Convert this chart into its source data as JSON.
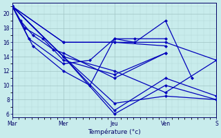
{
  "background_color": "#c8ecec",
  "grid_color_major": "#a0c4c4",
  "grid_color_minor": "#b4d8d8",
  "line_color": "#0000bb",
  "ylim": [
    5.5,
    21.5
  ],
  "yticks": [
    6,
    8,
    10,
    12,
    14,
    16,
    18,
    20
  ],
  "xlim": [
    0,
    100
  ],
  "x_day_positions": [
    0,
    25,
    50,
    75,
    100
  ],
  "x_day_labels": [
    "Mar",
    "Mer",
    "Jeu",
    "Ven",
    "S"
  ],
  "xlabel": "Température (°c)",
  "lines": [
    {
      "pts": [
        [
          0,
          21
        ],
        [
          25,
          14
        ],
        [
          50,
          6
        ],
        [
          75,
          10
        ],
        [
          100,
          8
        ]
      ]
    },
    {
      "pts": [
        [
          0,
          21
        ],
        [
          25,
          14
        ],
        [
          50,
          6.5
        ],
        [
          75,
          11
        ],
        [
          100,
          8.5
        ]
      ]
    },
    {
      "pts": [
        [
          0,
          21
        ],
        [
          25,
          14
        ],
        [
          50,
          7.5
        ],
        [
          75,
          8.5
        ],
        [
          100,
          8
        ]
      ]
    },
    {
      "pts": [
        [
          0,
          21
        ],
        [
          25,
          14
        ],
        [
          50,
          12
        ],
        [
          75,
          9
        ],
        [
          100,
          13.5
        ]
      ]
    },
    {
      "pts": [
        [
          0,
          21
        ],
        [
          25,
          16
        ],
        [
          50,
          16
        ],
        [
          75,
          16
        ],
        [
          100,
          13.5
        ]
      ]
    },
    {
      "pts": [
        [
          0,
          21
        ],
        [
          25,
          16
        ],
        [
          50,
          16
        ],
        [
          75,
          15.5
        ]
      ]
    },
    {
      "pts": [
        [
          0,
          21
        ],
        [
          10,
          15.5
        ],
        [
          25,
          12
        ],
        [
          38,
          10
        ],
        [
          50,
          16.5
        ],
        [
          60,
          16
        ],
        [
          75,
          19
        ],
        [
          88,
          11
        ]
      ]
    },
    {
      "pts": [
        [
          0,
          21
        ],
        [
          8,
          16.5
        ],
        [
          25,
          13
        ],
        [
          38,
          13.5
        ],
        [
          50,
          16.5
        ],
        [
          60,
          16.5
        ],
        [
          75,
          16.5
        ]
      ]
    },
    {
      "pts": [
        [
          0,
          21
        ],
        [
          6,
          18
        ],
        [
          15,
          16.5
        ],
        [
          25,
          13.5
        ],
        [
          50,
          11.5
        ],
        [
          75,
          14.5
        ]
      ]
    },
    {
      "pts": [
        [
          0,
          21
        ],
        [
          4,
          19
        ],
        [
          10,
          17
        ],
        [
          20,
          15
        ],
        [
          25,
          14.5
        ],
        [
          50,
          11
        ],
        [
          75,
          14.5
        ]
      ]
    }
  ],
  "marker": "D",
  "markersize": 2.2,
  "linewidth": 0.9
}
